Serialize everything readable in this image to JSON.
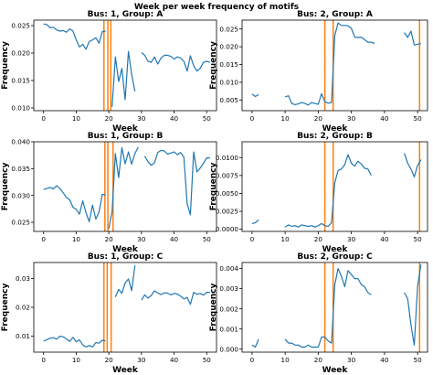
{
  "figure": {
    "title": "Week per week frequency of motifs",
    "line_color": "#1f77b4",
    "marker_color": "#ff7f0e"
  },
  "chart_data": [
    {
      "type": "line",
      "title": "Bus: 1, Group: A",
      "xlabel": "Week",
      "ylabel": "Frequency",
      "xlim": [
        -3,
        53
      ],
      "ylim": [
        0.0095,
        0.026
      ],
      "xticks": [
        0,
        10,
        20,
        30,
        40,
        50
      ],
      "yticks": [
        0.01,
        0.015,
        0.02,
        0.025
      ],
      "ytick_labels": [
        "0.010",
        "0.015",
        "0.020",
        "0.025"
      ],
      "vlines": [
        18.5,
        19.7,
        20.6
      ],
      "segments": [
        [
          [
            0,
            0.0253
          ],
          [
            1,
            0.0252
          ],
          [
            2,
            0.0246
          ],
          [
            3,
            0.0247
          ],
          [
            4,
            0.0242
          ],
          [
            5,
            0.024
          ],
          [
            6,
            0.0241
          ],
          [
            7,
            0.0238
          ],
          [
            8,
            0.0244
          ],
          [
            9,
            0.024
          ],
          [
            10,
            0.0224
          ],
          [
            11,
            0.0211
          ],
          [
            12,
            0.0216
          ],
          [
            13,
            0.0207
          ],
          [
            14,
            0.0221
          ],
          [
            15,
            0.0224
          ],
          [
            16,
            0.0228
          ],
          [
            17,
            0.0218
          ],
          [
            18,
            0.0239
          ],
          [
            19,
            0.024
          ]
        ],
        [
          [
            21,
            0.0102
          ],
          [
            22,
            0.0193
          ],
          [
            23,
            0.0148
          ],
          [
            24,
            0.0172
          ],
          [
            25,
            0.0115
          ],
          [
            26,
            0.0203
          ],
          [
            27,
            0.0161
          ],
          [
            28,
            0.013
          ]
        ],
        [
          [
            30,
            0.0201
          ],
          [
            31,
            0.0196
          ],
          [
            32,
            0.0185
          ],
          [
            33,
            0.0183
          ],
          [
            34,
            0.0193
          ],
          [
            35,
            0.018
          ],
          [
            36,
            0.0191
          ],
          [
            37,
            0.0196
          ],
          [
            38,
            0.0196
          ],
          [
            39,
            0.0194
          ],
          [
            40,
            0.0189
          ],
          [
            41,
            0.0193
          ],
          [
            42,
            0.0191
          ],
          [
            43,
            0.0185
          ],
          [
            44,
            0.0167
          ],
          [
            45,
            0.0195
          ],
          [
            46,
            0.0177
          ],
          [
            47,
            0.0167
          ],
          [
            48,
            0.0172
          ],
          [
            49,
            0.0183
          ],
          [
            50,
            0.0185
          ],
          [
            51,
            0.0183
          ]
        ]
      ]
    },
    {
      "type": "line",
      "title": "Bus: 2, Group: A",
      "xlabel": "Week",
      "ylabel": "Frequency",
      "xlim": [
        -3,
        53
      ],
      "ylim": [
        0.002,
        0.0275
      ],
      "xticks": [
        0,
        10,
        20,
        30,
        40,
        50
      ],
      "yticks": [
        0.005,
        0.01,
        0.015,
        0.02,
        0.025
      ],
      "ytick_labels": [
        "0.005",
        "0.010",
        "0.015",
        "0.020",
        "0.025"
      ],
      "vlines": [
        22,
        24.5,
        50.6
      ],
      "segments": [
        [
          [
            0,
            0.0067
          ],
          [
            1,
            0.006
          ],
          [
            2,
            0.0065
          ]
        ],
        [
          [
            10,
            0.0059
          ],
          [
            11,
            0.0062
          ],
          [
            12,
            0.004
          ],
          [
            13,
            0.0037
          ],
          [
            14,
            0.0039
          ],
          [
            15,
            0.0043
          ],
          [
            16,
            0.004
          ],
          [
            17,
            0.0036
          ],
          [
            18,
            0.0043
          ],
          [
            19,
            0.004
          ],
          [
            20,
            0.0038
          ],
          [
            21,
            0.0068
          ],
          [
            22,
            0.0045
          ],
          [
            23,
            0.0041
          ],
          [
            24,
            0.0043
          ],
          [
            25,
            0.0232
          ],
          [
            26,
            0.0267
          ],
          [
            27,
            0.026
          ],
          [
            28,
            0.026
          ],
          [
            29,
            0.0259
          ],
          [
            30,
            0.0252
          ],
          [
            31,
            0.0227
          ],
          [
            32,
            0.0226
          ],
          [
            33,
            0.0227
          ],
          [
            34,
            0.022
          ],
          [
            35,
            0.0213
          ],
          [
            36,
            0.0213
          ],
          [
            37,
            0.0209
          ]
        ],
        [
          [
            46,
            0.024
          ],
          [
            47,
            0.0226
          ],
          [
            48,
            0.0244
          ],
          [
            49,
            0.0205
          ],
          [
            50,
            0.0207
          ],
          [
            51,
            0.0209
          ]
        ]
      ]
    },
    {
      "type": "line",
      "title": "Bus: 1, Group: B",
      "xlabel": "Week",
      "ylabel": "Frequency",
      "xlim": [
        -3,
        53
      ],
      "ylim": [
        0.0233,
        0.04
      ],
      "xticks": [
        0,
        10,
        20,
        30,
        40,
        50
      ],
      "yticks": [
        0.025,
        0.03,
        0.035,
        0.04
      ],
      "ytick_labels": [
        "0.025",
        "0.030",
        "0.035",
        "0.040"
      ],
      "vlines": [
        18.8,
        19.7,
        21.3
      ],
      "segments": [
        [
          [
            0,
            0.0311
          ],
          [
            1,
            0.0313
          ],
          [
            2,
            0.0315
          ],
          [
            3,
            0.0312
          ],
          [
            4,
            0.0318
          ],
          [
            5,
            0.0313
          ],
          [
            6,
            0.0305
          ],
          [
            7,
            0.0296
          ],
          [
            8,
            0.0292
          ],
          [
            9,
            0.0278
          ],
          [
            10,
            0.0274
          ],
          [
            11,
            0.0265
          ],
          [
            12,
            0.029
          ],
          [
            13,
            0.0268
          ],
          [
            14,
            0.0251
          ],
          [
            15,
            0.0282
          ],
          [
            16,
            0.0256
          ],
          [
            17,
            0.0269
          ],
          [
            18,
            0.0302
          ],
          [
            19,
            0.0301
          ]
        ],
        [
          [
            20,
            0.0238
          ],
          [
            21,
            0.027
          ],
          [
            22,
            0.0378
          ],
          [
            23,
            0.0333
          ],
          [
            24,
            0.0389
          ],
          [
            25,
            0.0359
          ],
          [
            26,
            0.0381
          ],
          [
            27,
            0.0358
          ],
          [
            28,
            0.0378
          ],
          [
            29,
            0.039
          ]
        ],
        [
          [
            31,
            0.0373
          ],
          [
            32,
            0.0363
          ],
          [
            33,
            0.0356
          ],
          [
            34,
            0.0361
          ],
          [
            35,
            0.038
          ],
          [
            36,
            0.0384
          ],
          [
            37,
            0.0383
          ],
          [
            38,
            0.0377
          ],
          [
            39,
            0.0379
          ],
          [
            40,
            0.0381
          ],
          [
            41,
            0.0376
          ],
          [
            42,
            0.038
          ],
          [
            43,
            0.0371
          ],
          [
            44,
            0.0284
          ],
          [
            45,
            0.0264
          ],
          [
            46,
            0.0381
          ],
          [
            47,
            0.0344
          ],
          [
            48,
            0.0351
          ],
          [
            49,
            0.036
          ],
          [
            50,
            0.037
          ],
          [
            51,
            0.037
          ]
        ]
      ]
    },
    {
      "type": "line",
      "title": "Bus: 2, Group: B",
      "xlabel": "Week",
      "ylabel": "Frequency",
      "xlim": [
        -3,
        53
      ],
      "ylim": [
        -0.0003,
        0.0122
      ],
      "xticks": [
        0,
        10,
        20,
        30,
        40,
        50
      ],
      "yticks": [
        0.0,
        0.0025,
        0.005,
        0.0075,
        0.01
      ],
      "ytick_labels": [
        "0.0000",
        "0.0025",
        "0.0050",
        "0.0075",
        "0.0100"
      ],
      "vlines": [
        22,
        24.5,
        50.6
      ],
      "segments": [
        [
          [
            0,
            0.0008
          ],
          [
            1,
            0.0009
          ],
          [
            2,
            0.0013
          ]
        ],
        [
          [
            10,
            0.0003
          ],
          [
            11,
            0.0006
          ],
          [
            12,
            0.0004
          ],
          [
            13,
            0.0005
          ],
          [
            14,
            0.0003
          ],
          [
            15,
            0.0006
          ],
          [
            16,
            0.0005
          ],
          [
            17,
            0.0004
          ],
          [
            18,
            0.0005
          ],
          [
            19,
            0.0003
          ],
          [
            20,
            0.0005
          ],
          [
            21,
            0.0008
          ],
          [
            22,
            0.0005
          ],
          [
            23,
            0.0004
          ],
          [
            24,
            0.0009
          ],
          [
            25,
            0.0065
          ],
          [
            26,
            0.0082
          ],
          [
            27,
            0.0084
          ],
          [
            28,
            0.009
          ],
          [
            29,
            0.0104
          ],
          [
            30,
            0.0092
          ],
          [
            31,
            0.0088
          ],
          [
            32,
            0.0095
          ],
          [
            33,
            0.0091
          ],
          [
            34,
            0.0085
          ],
          [
            35,
            0.0084
          ],
          [
            36,
            0.0075
          ]
        ],
        [
          [
            46,
            0.0106
          ],
          [
            47,
            0.0092
          ],
          [
            48,
            0.0084
          ],
          [
            49,
            0.0073
          ],
          [
            50,
            0.0089
          ],
          [
            51,
            0.0097
          ]
        ]
      ]
    },
    {
      "type": "line",
      "title": "Bus: 1, Group: C",
      "xlabel": "Week",
      "ylabel": "Frequency",
      "xlim": [
        -3,
        53
      ],
      "ylim": [
        0.0045,
        0.0355
      ],
      "xticks": [
        0,
        10,
        20,
        30,
        40,
        50
      ],
      "yticks": [
        0.01,
        0.02,
        0.03
      ],
      "ytick_labels": [
        "0.01",
        "0.02",
        "0.03"
      ],
      "vlines": [
        18.5,
        19.5,
        20.7
      ],
      "segments": [
        [
          [
            0,
            0.0083
          ],
          [
            1,
            0.0088
          ],
          [
            2,
            0.0093
          ],
          [
            3,
            0.0095
          ],
          [
            4,
            0.009
          ],
          [
            5,
            0.01
          ],
          [
            6,
            0.0098
          ],
          [
            7,
            0.0091
          ],
          [
            8,
            0.0082
          ],
          [
            9,
            0.0096
          ],
          [
            10,
            0.0081
          ],
          [
            11,
            0.0087
          ],
          [
            12,
            0.007
          ],
          [
            13,
            0.0063
          ],
          [
            14,
            0.0068
          ],
          [
            15,
            0.0063
          ],
          [
            16,
            0.0078
          ],
          [
            17,
            0.0076
          ],
          [
            18,
            0.0086
          ],
          [
            19,
            0.0084
          ]
        ],
        [
          [
            22,
            0.0236
          ],
          [
            23,
            0.0262
          ],
          [
            24,
            0.0248
          ],
          [
            25,
            0.0284
          ],
          [
            26,
            0.0298
          ],
          [
            27,
            0.0258
          ],
          [
            28,
            0.0345
          ]
        ],
        [
          [
            30,
            0.0225
          ],
          [
            31,
            0.0243
          ],
          [
            32,
            0.0232
          ],
          [
            33,
            0.0241
          ],
          [
            34,
            0.0257
          ],
          [
            35,
            0.025
          ],
          [
            36,
            0.0244
          ],
          [
            37,
            0.025
          ],
          [
            38,
            0.0249
          ],
          [
            39,
            0.0243
          ],
          [
            40,
            0.0248
          ],
          [
            41,
            0.0246
          ],
          [
            42,
            0.0239
          ],
          [
            43,
            0.0229
          ],
          [
            44,
            0.0234
          ],
          [
            45,
            0.021
          ],
          [
            46,
            0.0252
          ],
          [
            47,
            0.0245
          ],
          [
            48,
            0.0248
          ],
          [
            49,
            0.0242
          ],
          [
            50,
            0.0252
          ],
          [
            51,
            0.0252
          ]
        ]
      ]
    },
    {
      "type": "line",
      "title": "Bus: 2, Group: C",
      "xlabel": "Week",
      "ylabel": "Frequency",
      "xlim": [
        -3,
        53
      ],
      "ylim": [
        -0.00015,
        0.0043
      ],
      "xticks": [
        0,
        10,
        20,
        30,
        40,
        50
      ],
      "yticks": [
        0.0,
        0.001,
        0.002,
        0.003,
        0.004
      ],
      "ytick_labels": [
        "0.000",
        "0.001",
        "0.002",
        "0.003",
        "0.004"
      ],
      "vlines": [
        22,
        24.5,
        50.6
      ],
      "segments": [
        [
          [
            0,
            0.0002
          ],
          [
            1,
            0.0001
          ],
          [
            2,
            0.0005
          ]
        ],
        [
          [
            10,
            0.0005
          ],
          [
            11,
            0.0003
          ],
          [
            12,
            0.0003
          ],
          [
            13,
            0.0002
          ],
          [
            14,
            0.0002
          ],
          [
            15,
            0.0001
          ],
          [
            16,
            0.0001
          ],
          [
            17,
            0.0002
          ],
          [
            18,
            0.0001
          ],
          [
            19,
            0.0001
          ],
          [
            20,
            0.0001
          ],
          [
            21,
            0.0006
          ],
          [
            22,
            0.0006
          ],
          [
            23,
            0.0004
          ],
          [
            24,
            0.0003
          ],
          [
            25,
            0.0032
          ],
          [
            26,
            0.004
          ],
          [
            27,
            0.0036
          ],
          [
            28,
            0.0031
          ],
          [
            29,
            0.0039
          ],
          [
            30,
            0.0037
          ],
          [
            31,
            0.0035
          ],
          [
            32,
            0.0035
          ],
          [
            33,
            0.0032
          ],
          [
            34,
            0.0031
          ],
          [
            35,
            0.0028
          ],
          [
            36,
            0.0027
          ]
        ],
        [
          [
            46,
            0.0028
          ],
          [
            47,
            0.0025
          ],
          [
            48,
            0.0012
          ],
          [
            49,
            0.0002
          ],
          [
            50,
            0.0031
          ],
          [
            51,
            0.0042
          ]
        ]
      ]
    }
  ]
}
